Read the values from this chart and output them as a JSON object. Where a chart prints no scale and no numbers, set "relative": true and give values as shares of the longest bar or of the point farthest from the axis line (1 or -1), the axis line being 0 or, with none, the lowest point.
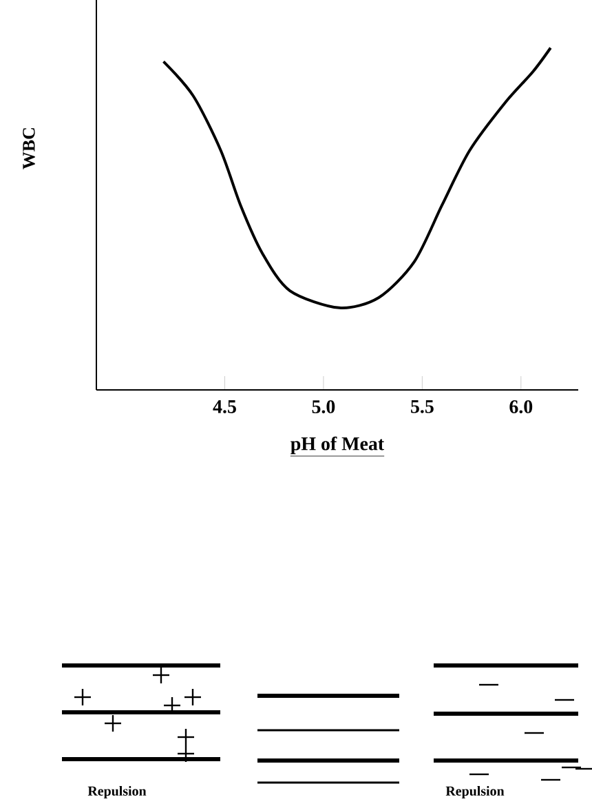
{
  "chart_data": {
    "type": "line",
    "ylabel": "WBC",
    "xlabel": "pH of Meat",
    "relative": true,
    "color": "#000000",
    "x": [
      4.19,
      4.34,
      4.48,
      4.58,
      4.69,
      4.83,
      5.08,
      5.28,
      5.46,
      5.6,
      5.74,
      5.92,
      6.06,
      6.15
    ],
    "values": [
      0.96,
      0.86,
      0.7,
      0.54,
      0.4,
      0.29,
      0.24,
      0.27,
      0.375,
      0.54,
      0.7,
      0.84,
      0.93,
      1.0
    ],
    "xlim": [
      3.85,
      6.29
    ],
    "xticks": [
      4.5,
      {
        "value": 5.0,
        "label": "5.0"
      },
      5.5,
      {
        "value": 6.0,
        "label": "6.0"
      }
    ],
    "annotations": [
      "Repulsion",
      "Repulsion"
    ]
  }
}
